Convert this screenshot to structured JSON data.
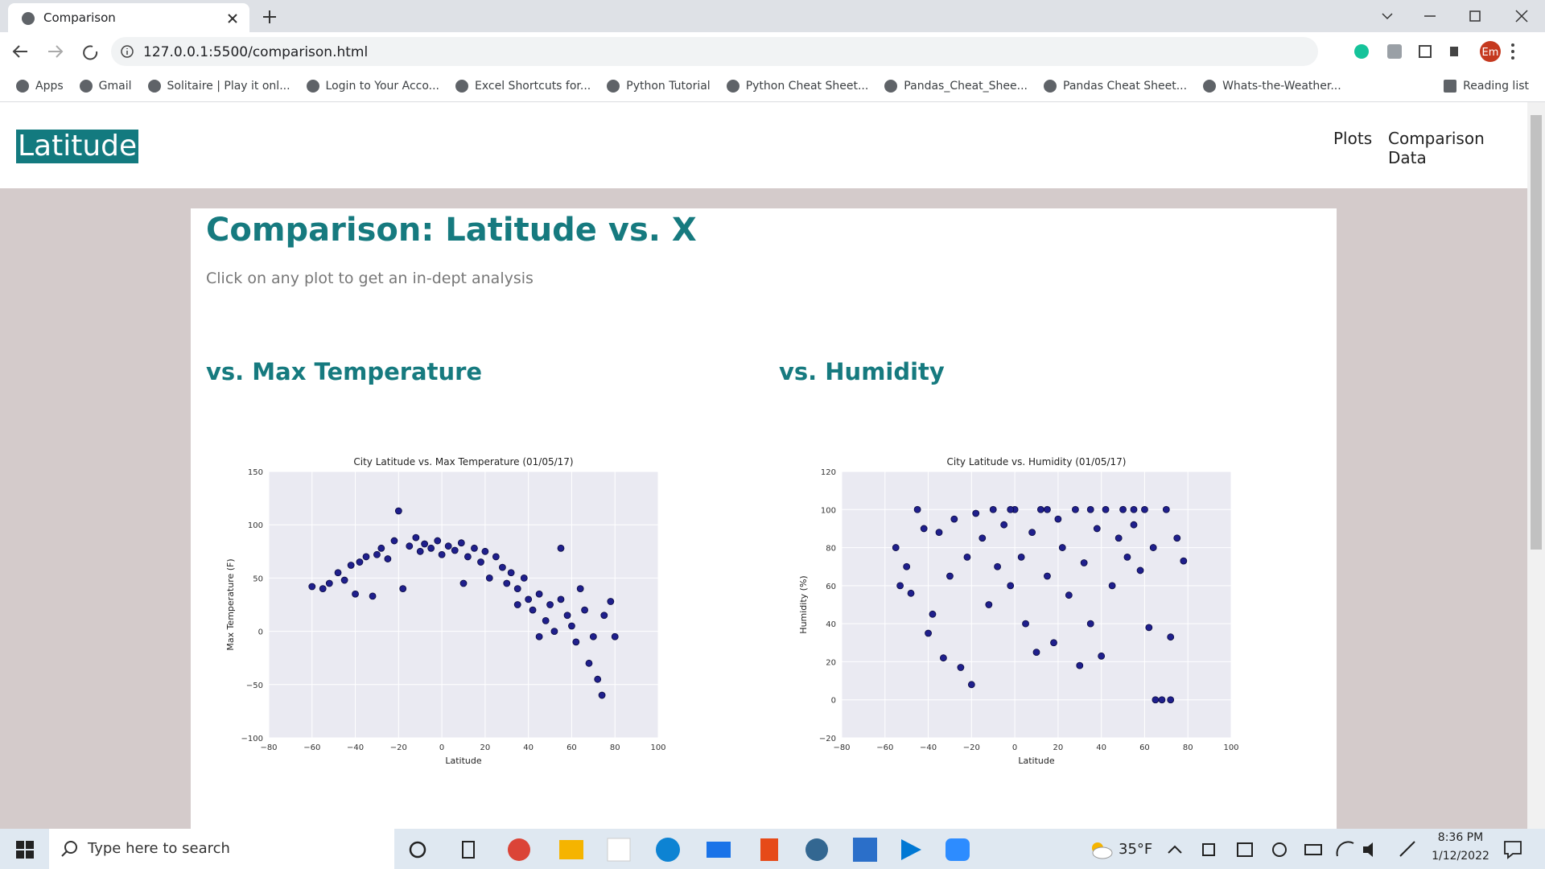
{
  "browser": {
    "tab_title": "Comparison",
    "url": "127.0.0.1:5500/comparison.html",
    "profile": "Em",
    "bookmarks": [
      "Apps",
      "Gmail",
      "Solitaire | Play it onl...",
      "Login to Your Acco...",
      "Excel Shortcuts for...",
      "Python Tutorial",
      "Python Cheat Sheet...",
      "Pandas_Cheat_Shee...",
      "Pandas Cheat Sheet...",
      "Whats-the-Weather..."
    ],
    "reading_list": "Reading list"
  },
  "page": {
    "brand": "Latitude",
    "nav": [
      "Plots",
      "Comparison Data"
    ],
    "heading": "Comparison: Latitude vs. X",
    "subtitle": "Click on any plot to get an in-dept analysis",
    "sections": [
      "vs. Max Temperature",
      "vs. Humidity"
    ]
  },
  "chart_data": [
    {
      "type": "scatter",
      "title": "City Latitude vs. Max Temperature (01/05/17)",
      "x_label": "Latitude",
      "y_label": "Max Temperature (F)",
      "color": "#1f1f8c",
      "grid": true,
      "xlim": [
        -80,
        100
      ],
      "xticks": [
        {
          "value": -80,
          "label": "−80"
        },
        {
          "value": -60,
          "label": "−60"
        },
        {
          "value": -40,
          "label": "−40"
        },
        {
          "value": -20,
          "label": "−20"
        },
        0,
        20,
        40,
        60,
        80,
        100
      ],
      "ylim": [
        -100,
        150
      ],
      "yticks": [
        {
          "value": -100,
          "label": "−100"
        },
        {
          "value": -50,
          "label": "−50"
        },
        0,
        50,
        100,
        150
      ],
      "x": [
        -55,
        -52,
        -48,
        -45,
        -42,
        -38,
        -35,
        -32,
        -30,
        -28,
        -25,
        -22,
        -20,
        -18,
        -15,
        -12,
        -10,
        -8,
        -5,
        -2,
        0,
        3,
        6,
        9,
        12,
        15,
        18,
        20,
        22,
        25,
        28,
        30,
        32,
        35,
        38,
        40,
        42,
        45,
        48,
        50,
        52,
        55,
        55,
        58,
        60,
        62,
        64,
        66,
        68,
        70,
        72,
        74,
        75,
        78,
        80,
        -60,
        -40,
        10,
        35,
        45
      ],
      "values": [
        40,
        45,
        55,
        48,
        62,
        65,
        70,
        33,
        72,
        78,
        68,
        85,
        113,
        40,
        80,
        88,
        75,
        82,
        78,
        85,
        72,
        80,
        76,
        83,
        70,
        78,
        65,
        75,
        50,
        70,
        60,
        45,
        55,
        40,
        50,
        30,
        20,
        35,
        10,
        25,
        0,
        30,
        78,
        15,
        5,
        -10,
        40,
        20,
        -30,
        -5,
        -45,
        -60,
        15,
        28,
        -5,
        42,
        35,
        45,
        25,
        -5
      ]
    },
    {
      "type": "scatter",
      "title": "City Latitude vs. Humidity (01/05/17)",
      "x_label": "Latitude",
      "y_label": "Humidity (%)",
      "color": "#1f1f8c",
      "grid": true,
      "xlim": [
        -80,
        100
      ],
      "xticks": [
        {
          "value": -80,
          "label": "−80"
        },
        {
          "value": -60,
          "label": "−60"
        },
        {
          "value": -40,
          "label": "−40"
        },
        {
          "value": -20,
          "label": "−20"
        },
        0,
        20,
        40,
        60,
        80,
        100
      ],
      "ylim": [
        -20,
        120
      ],
      "yticks": [
        {
          "value": -20,
          "label": "−20"
        },
        0,
        20,
        40,
        60,
        80,
        100,
        120
      ],
      "x": [
        -55,
        -53,
        -50,
        -45,
        -42,
        -40,
        -38,
        -35,
        -33,
        -30,
        -28,
        -25,
        -22,
        -20,
        -18,
        -15,
        -12,
        -10,
        -8,
        -5,
        -2,
        0,
        3,
        5,
        8,
        10,
        12,
        15,
        18,
        20,
        22,
        25,
        28,
        30,
        32,
        35,
        38,
        40,
        42,
        45,
        48,
        50,
        52,
        55,
        58,
        60,
        62,
        64,
        65,
        68,
        70,
        72,
        72,
        75,
        78,
        -48,
        15,
        35,
        55,
        -2
      ],
      "values": [
        80,
        60,
        70,
        100,
        90,
        35,
        45,
        88,
        22,
        65,
        95,
        17,
        75,
        8,
        98,
        85,
        50,
        100,
        70,
        92,
        60,
        100,
        75,
        40,
        88,
        25,
        100,
        65,
        30,
        95,
        80,
        55,
        100,
        18,
        72,
        40,
        90,
        23,
        100,
        60,
        85,
        100,
        75,
        92,
        68,
        100,
        38,
        80,
        0,
        0,
        100,
        33,
        0,
        85,
        73,
        56,
        100,
        100,
        100,
        100
      ]
    }
  ],
  "taskbar": {
    "search": "Type here to search",
    "weather": "35°F",
    "time": "8:36 PM",
    "date": "1/12/2022"
  }
}
